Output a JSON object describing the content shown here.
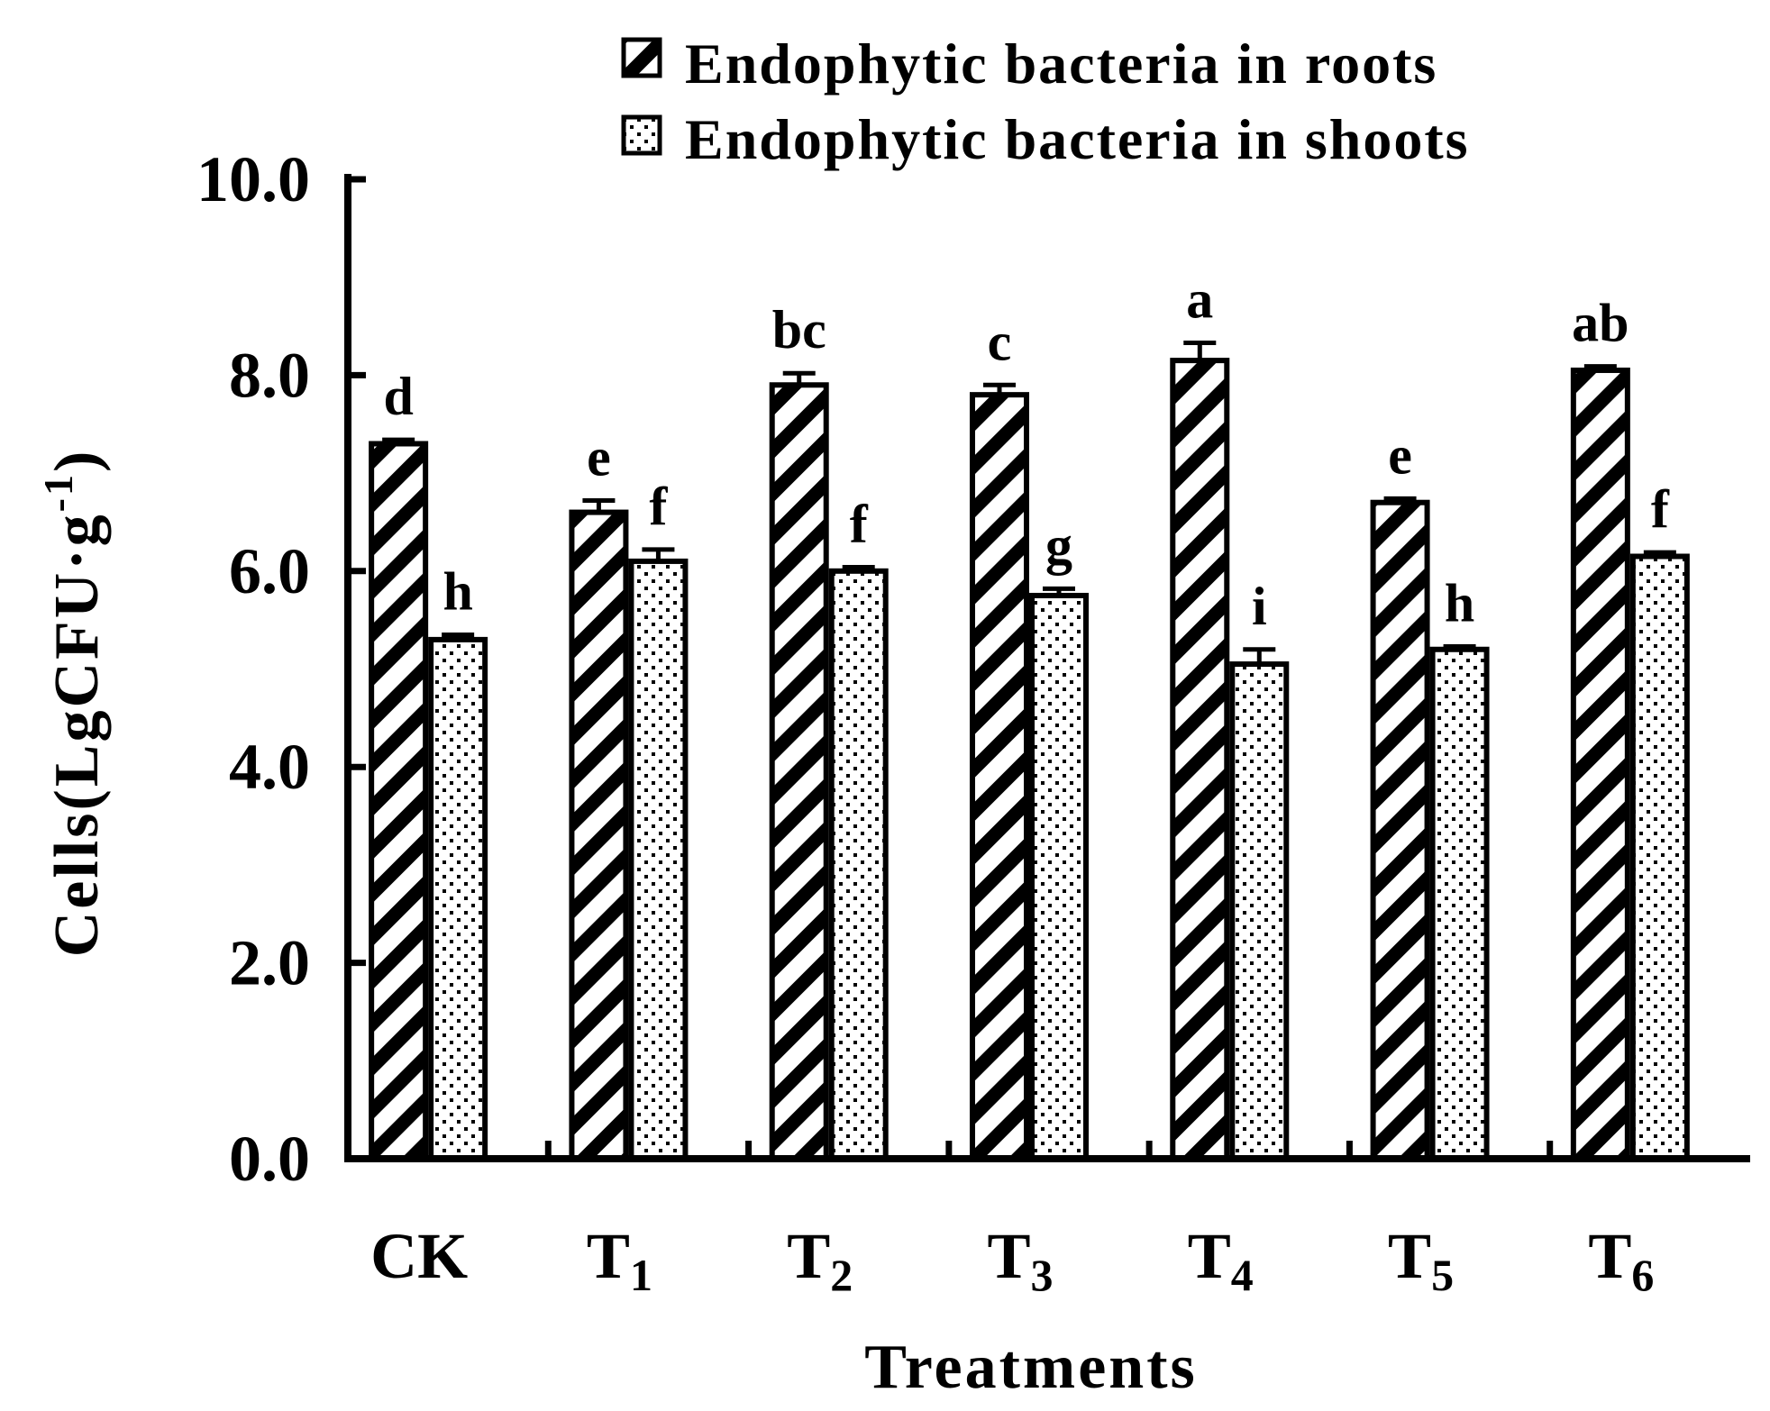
{
  "chart_data": {
    "type": "bar",
    "xlabel": "Treatments",
    "ylabel": "Cells(LgCFU·g",
    "ylabel_sup": "-1",
    "ylabel_close": ")",
    "ylim": [
      0,
      10
    ],
    "yticks": [
      "0.0",
      "2.0",
      "4.0",
      "6.0",
      "8.0",
      "10.0"
    ],
    "categories": [
      {
        "main": "CK",
        "sub": ""
      },
      {
        "main": "T",
        "sub": "1"
      },
      {
        "main": "T",
        "sub": "2"
      },
      {
        "main": "T",
        "sub": "3"
      },
      {
        "main": "T",
        "sub": "4"
      },
      {
        "main": "T",
        "sub": "5"
      },
      {
        "main": "T",
        "sub": "6"
      }
    ],
    "series": [
      {
        "name": "Endophytic bacteria in roots",
        "pattern": "diagonal-stripes",
        "values": [
          7.3,
          6.6,
          7.9,
          7.8,
          8.15,
          6.7,
          8.05
        ],
        "errors": [
          0.04,
          0.12,
          0.12,
          0.1,
          0.18,
          0.04,
          0.04
        ],
        "letters": [
          "d",
          "e",
          "bc",
          "c",
          "a",
          "e",
          "ab"
        ]
      },
      {
        "name": "Endophytic bacteria in shoots",
        "pattern": "dots",
        "values": [
          5.3,
          6.1,
          6.0,
          5.75,
          5.05,
          5.2,
          6.15
        ],
        "errors": [
          0.05,
          0.12,
          0.04,
          0.07,
          0.15,
          0.03,
          0.04
        ],
        "letters": [
          "h",
          "f",
          "f",
          "g",
          "i",
          "h",
          "f"
        ]
      }
    ],
    "legend_position": "top-center",
    "grid": false
  }
}
